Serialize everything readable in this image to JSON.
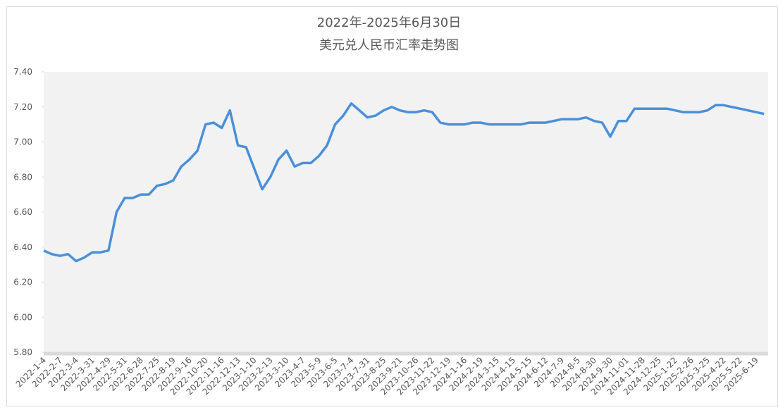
{
  "chart_data": {
    "type": "line",
    "title": "2022年-2025年6月30日",
    "subtitle": "美元兑人民币汇率走势图",
    "categories": [
      "2022-1-4",
      null,
      "2022-2-7",
      null,
      "2022-3-4",
      null,
      "2022-3-31",
      null,
      "2022-4-29",
      null,
      "2022-5-31",
      null,
      "2022-6-28",
      null,
      "2022-7-25",
      null,
      "2022-8-19",
      null,
      "2022-9-16",
      null,
      "2022-10-20",
      null,
      "2022-11-16",
      null,
      "2022-12-13",
      null,
      "2023-1-10",
      null,
      "2023-2-13",
      null,
      "2023-3-10",
      null,
      "2023-4-7",
      null,
      "2023-5-9",
      null,
      "2023-6-5",
      null,
      "2023-7-4",
      null,
      "2023-7-31",
      null,
      "2023-8-25",
      null,
      "2023-9-21",
      null,
      "2023-10-26",
      null,
      "2023-11-22",
      null,
      "2023-12-19",
      null,
      "2024-1-16",
      null,
      "2024-2-19",
      null,
      "2024-3-15",
      null,
      "2024-4-15",
      null,
      "2024-5-15",
      null,
      "2024-6-12",
      null,
      "2024-7-9",
      null,
      "2024-8-5",
      null,
      "2024-8-30",
      null,
      "2024-9-30",
      null,
      "2024-11-01",
      null,
      "2024-11-28",
      null,
      "2024-12-25",
      null,
      "2025-1-22",
      null,
      "2025-2-26",
      null,
      "2025-3-25",
      null,
      "2025-4-22",
      null,
      "2025-5-22",
      null,
      "2025-6-19",
      null
    ],
    "series": [
      {
        "name": "美元兑人民币",
        "color": "#4a90d9",
        "values": [
          6.38,
          6.36,
          6.35,
          6.36,
          6.32,
          6.34,
          6.37,
          6.37,
          6.38,
          6.6,
          6.68,
          6.68,
          6.7,
          6.7,
          6.75,
          6.76,
          6.78,
          6.86,
          6.9,
          6.95,
          7.1,
          7.11,
          7.08,
          7.18,
          6.98,
          6.97,
          6.85,
          6.73,
          6.8,
          6.9,
          6.95,
          6.86,
          6.88,
          6.88,
          6.92,
          6.98,
          7.1,
          7.15,
          7.22,
          7.18,
          7.14,
          7.15,
          7.18,
          7.2,
          7.18,
          7.17,
          7.17,
          7.18,
          7.17,
          7.11,
          7.1,
          7.1,
          7.1,
          7.11,
          7.11,
          7.1,
          7.1,
          7.1,
          7.1,
          7.1,
          7.11,
          7.11,
          7.11,
          7.12,
          7.13,
          7.13,
          7.13,
          7.14,
          7.12,
          7.11,
          7.03,
          7.12,
          7.12,
          7.19,
          7.19,
          7.19,
          7.19,
          7.19,
          7.18,
          7.17,
          7.17,
          7.17,
          7.18,
          7.21,
          7.21,
          7.2,
          7.19,
          7.18,
          7.17,
          7.16
        ]
      }
    ],
    "ylim": [
      5.8,
      7.4
    ],
    "yticks": [
      {
        "value": 5.8,
        "label": "5.80"
      },
      {
        "value": 6.0,
        "label": "6.00"
      },
      {
        "value": 6.2,
        "label": "6.20"
      },
      {
        "value": 6.4,
        "label": "6.40"
      },
      {
        "value": 6.6,
        "label": "6.60"
      },
      {
        "value": 6.8,
        "label": "6.80"
      },
      {
        "value": 7.0,
        "label": "7.00"
      },
      {
        "value": 7.2,
        "label": "7.20"
      },
      {
        "value": 7.4,
        "label": "7.40"
      }
    ]
  }
}
